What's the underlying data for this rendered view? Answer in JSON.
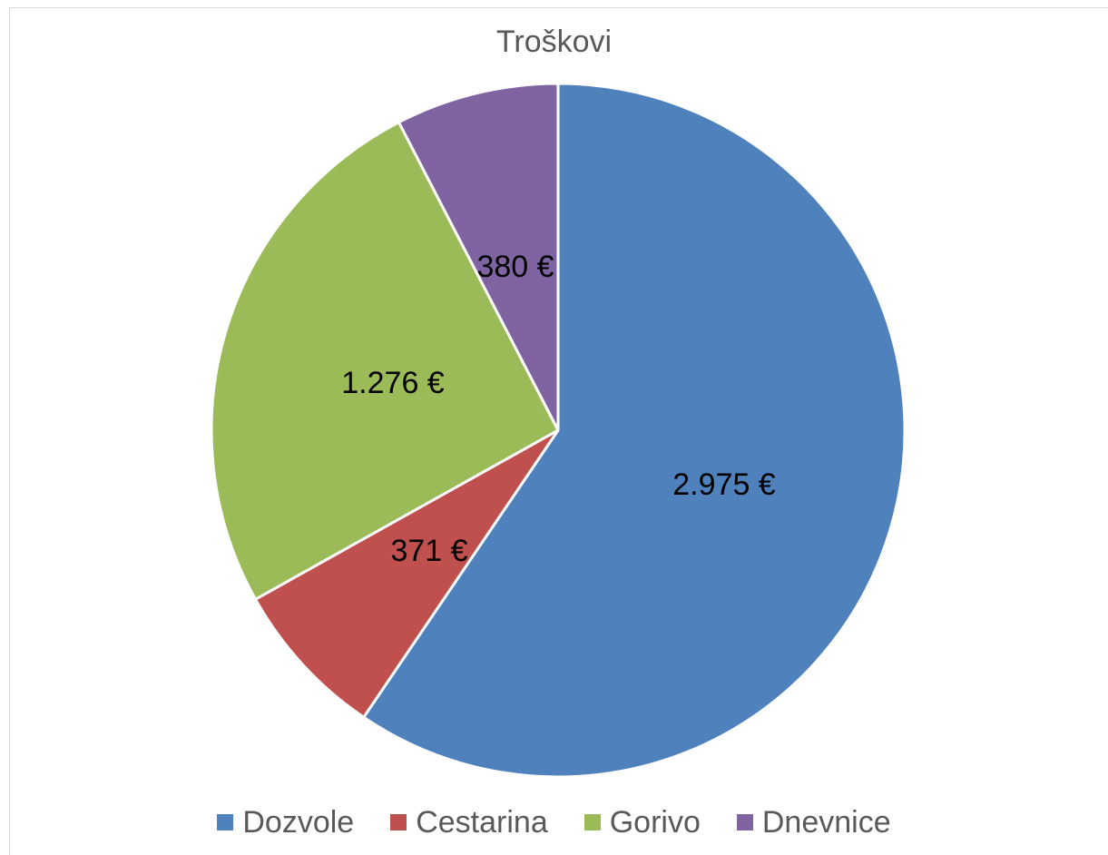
{
  "chart_data": {
    "type": "pie",
    "title": "Troškovi",
    "categories": [
      "Dozvole",
      "Cestarina",
      "Gorivo",
      "Dnevnice"
    ],
    "values": [
      2975,
      371,
      1276,
      380
    ],
    "value_labels": [
      "2.975 €",
      "371 €",
      "1.276 €",
      "380 €"
    ],
    "colors": [
      "#4f81bd",
      "#c0504d",
      "#9bbb59",
      "#8064a2"
    ],
    "legend_position": "bottom",
    "start_angle": "12 o'clock",
    "direction": "clockwise"
  }
}
